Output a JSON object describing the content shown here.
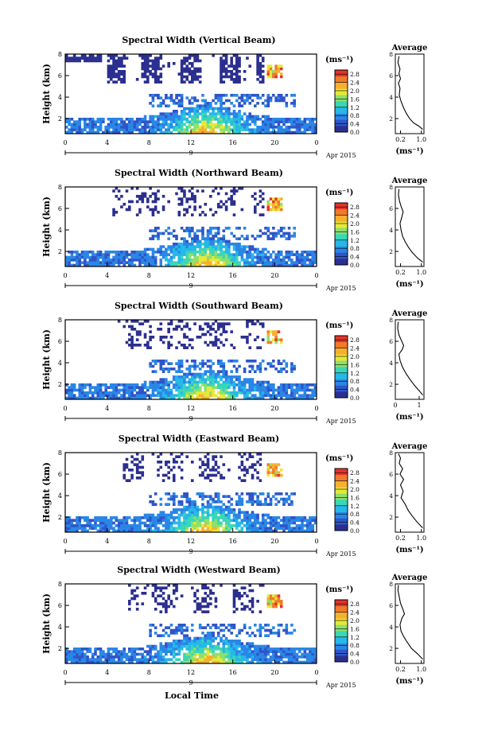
{
  "figure": {
    "xlabel": "Local Time",
    "date_label": "Apr 2015",
    "day_label": "9",
    "colorbar_unit": "(ms⁻¹)",
    "average_unit": "(ms⁻¹)",
    "average_title": "Average",
    "colorbar_ticks": [
      "0.0",
      "0.4",
      "0.8",
      "1.2",
      "1.6",
      "2.0",
      "2.4",
      "2.8"
    ],
    "colormap": [
      "#2b2f8f",
      "#2f55c8",
      "#2a86e6",
      "#26b8e8",
      "#3ad6b8",
      "#8ee06a",
      "#e8e838",
      "#f6b030",
      "#f07a2a",
      "#e2342a"
    ]
  },
  "chart_data": [
    {
      "type": "heatmap",
      "title": "Spectral Width (Vertical Beam)",
      "xlabel": "Local Time",
      "ylabel": "Height (km)",
      "xlim": [
        0,
        24
      ],
      "ylim": [
        0.6,
        8
      ],
      "xticks": [
        "0",
        "4",
        "8",
        "12",
        "16",
        "20",
        "0"
      ],
      "yticks": [
        "2",
        "4",
        "6",
        "8"
      ],
      "colorbar_range": [
        0.0,
        3.0
      ],
      "average": {
        "xticks": [
          "0.2",
          "1.0"
        ],
        "xlim": [
          0,
          1.1
        ],
        "ylim": [
          0.6,
          8
        ],
        "profile": [
          [
            1.05,
            1.0
          ],
          [
            0.9,
            1.3
          ],
          [
            0.7,
            1.6
          ],
          [
            0.55,
            2.0
          ],
          [
            0.42,
            2.5
          ],
          [
            0.32,
            3.0
          ],
          [
            0.22,
            3.6
          ],
          [
            0.15,
            4.2
          ],
          [
            0.18,
            4.8
          ],
          [
            0.12,
            5.3
          ],
          [
            0.2,
            5.7
          ],
          [
            0.14,
            6.2
          ],
          [
            0.18,
            6.6
          ],
          [
            0.1,
            7.2
          ],
          [
            0.14,
            7.8
          ]
        ]
      }
    },
    {
      "type": "heatmap",
      "title": "Spectral Width (Northward Beam)",
      "xlabel": "Local Time",
      "ylabel": "Height (km)",
      "xlim": [
        0,
        24
      ],
      "ylim": [
        0.6,
        8
      ],
      "xticks": [
        "0",
        "4",
        "8",
        "12",
        "16",
        "20",
        "0"
      ],
      "yticks": [
        "2",
        "4",
        "6",
        "8"
      ],
      "colorbar_range": [
        0.0,
        3.0
      ],
      "average": {
        "xticks": [
          "0.2",
          "1.0"
        ],
        "xlim": [
          0,
          1.1
        ],
        "ylim": [
          0.6,
          8
        ],
        "profile": [
          [
            1.05,
            1.0
          ],
          [
            0.85,
            1.4
          ],
          [
            0.65,
            1.9
          ],
          [
            0.5,
            2.4
          ],
          [
            0.38,
            2.9
          ],
          [
            0.28,
            3.4
          ],
          [
            0.22,
            4.0
          ],
          [
            0.18,
            4.6
          ],
          [
            0.25,
            5.2
          ],
          [
            0.3,
            5.7
          ],
          [
            0.22,
            6.2
          ],
          [
            0.16,
            6.7
          ],
          [
            0.12,
            7.3
          ],
          [
            0.14,
            7.8
          ]
        ]
      }
    },
    {
      "type": "heatmap",
      "title": "Spectral Width (Southward Beam)",
      "xlabel": "Local Time",
      "ylabel": "Height (km)",
      "xlim": [
        0,
        24
      ],
      "ylim": [
        0.6,
        8
      ],
      "xticks": [
        "0",
        "4",
        "8",
        "12",
        "16",
        "20",
        "0"
      ],
      "yticks": [
        "2",
        "4",
        "6",
        "8"
      ],
      "colorbar_range": [
        0.0,
        3.0
      ],
      "average": {
        "xticks": [
          "0",
          "1"
        ],
        "xlim": [
          0,
          1.2
        ],
        "ylim": [
          0.6,
          8
        ],
        "profile": [
          [
            1.15,
            1.0
          ],
          [
            1.0,
            1.4
          ],
          [
            0.8,
            1.9
          ],
          [
            0.6,
            2.5
          ],
          [
            0.45,
            3.0
          ],
          [
            0.3,
            3.6
          ],
          [
            0.2,
            4.2
          ],
          [
            0.15,
            4.8
          ],
          [
            0.28,
            5.2
          ],
          [
            0.35,
            5.6
          ],
          [
            0.25,
            6.1
          ],
          [
            0.15,
            6.6
          ],
          [
            0.1,
            7.2
          ],
          [
            0.12,
            7.8
          ]
        ]
      }
    },
    {
      "type": "heatmap",
      "title": "Spectral Width (Eastward Beam)",
      "xlabel": "Local Time",
      "ylabel": "Height (km)",
      "xlim": [
        0,
        24
      ],
      "ylim": [
        0.6,
        8
      ],
      "xticks": [
        "0",
        "4",
        "8",
        "12",
        "16",
        "20",
        "0"
      ],
      "yticks": [
        "2",
        "4",
        "6",
        "8"
      ],
      "colorbar_range": [
        0.0,
        3.0
      ],
      "average": {
        "xticks": [
          "0.2",
          "1.0"
        ],
        "xlim": [
          0,
          1.1
        ],
        "ylim": [
          0.6,
          8
        ],
        "profile": [
          [
            1.05,
            1.0
          ],
          [
            0.85,
            1.5
          ],
          [
            0.65,
            2.1
          ],
          [
            0.5,
            2.6
          ],
          [
            0.38,
            3.2
          ],
          [
            0.22,
            3.8
          ],
          [
            0.3,
            4.4
          ],
          [
            0.2,
            5.0
          ],
          [
            0.32,
            5.5
          ],
          [
            0.18,
            6.0
          ],
          [
            0.28,
            6.5
          ],
          [
            0.15,
            7.0
          ],
          [
            0.2,
            7.5
          ],
          [
            0.12,
            7.9
          ]
        ]
      }
    },
    {
      "type": "heatmap",
      "title": "Spectral Width (Westward Beam)",
      "xlabel": "Local Time",
      "ylabel": "Height (km)",
      "xlim": [
        0,
        24
      ],
      "ylim": [
        0.6,
        8
      ],
      "xticks": [
        "0",
        "4",
        "8",
        "12",
        "16",
        "20",
        "0"
      ],
      "yticks": [
        "2",
        "4",
        "6",
        "8"
      ],
      "colorbar_range": [
        0.0,
        3.0
      ],
      "average": {
        "xticks": [
          "0.2",
          "1.0"
        ],
        "xlim": [
          0,
          1.1
        ],
        "ylim": [
          0.6,
          8
        ],
        "profile": [
          [
            1.05,
            1.0
          ],
          [
            0.85,
            1.5
          ],
          [
            0.62,
            2.0
          ],
          [
            0.45,
            2.6
          ],
          [
            0.32,
            3.1
          ],
          [
            0.22,
            3.6
          ],
          [
            0.18,
            4.2
          ],
          [
            0.25,
            4.8
          ],
          [
            0.35,
            5.2
          ],
          [
            0.28,
            5.7
          ],
          [
            0.2,
            6.2
          ],
          [
            0.15,
            6.8
          ],
          [
            0.1,
            7.4
          ],
          [
            0.12,
            7.9
          ]
        ]
      }
    }
  ]
}
